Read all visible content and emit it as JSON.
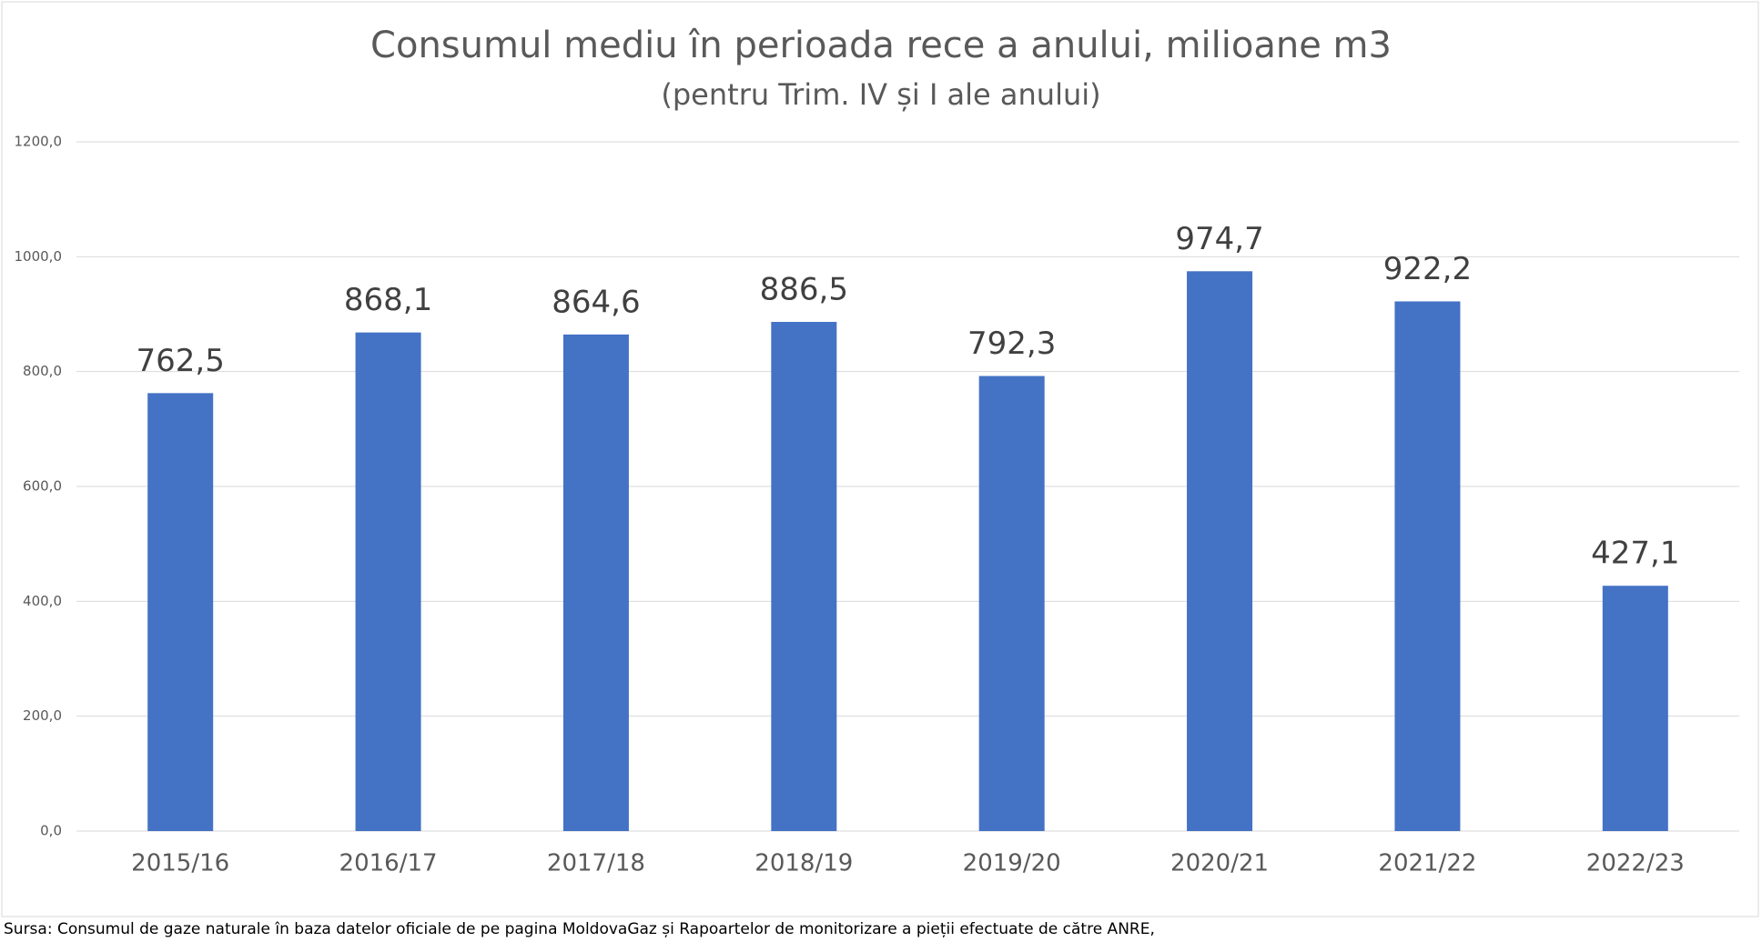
{
  "chart_data": {
    "type": "bar",
    "title": "Consumul mediu în perioada rece a anului, milioane m3",
    "subtitle": "(pentru Trim. IV și I ale anului)",
    "categories": [
      "2015/16",
      "2016/17",
      "2017/18",
      "2018/19",
      "2019/20",
      "2020/21",
      "2021/22",
      "2022/23"
    ],
    "values": [
      762.5,
      868.1,
      864.6,
      886.5,
      792.3,
      974.7,
      922.2,
      427.1
    ],
    "value_labels": [
      "762,5",
      "868,1",
      "864,6",
      "886,5",
      "792,3",
      "974,7",
      "922,2",
      "427,1"
    ],
    "color": "#4472c4",
    "ylim": [
      0,
      1200
    ],
    "yticks": [
      {
        "value": 0,
        "label": "0,0"
      },
      {
        "value": 200,
        "label": "200,0"
      },
      {
        "value": 400,
        "label": "400,0"
      },
      {
        "value": 600,
        "label": "600,0"
      },
      {
        "value": 800,
        "label": "800,0"
      },
      {
        "value": 1000,
        "label": "1000,0"
      },
      {
        "value": 1200,
        "label": "1200,0"
      }
    ],
    "grid": true,
    "source": "Sursa: Consumul de gaze naturale în baza datelor oficiale de pe pagina MoldovaGaz și Rapoartelor de monitorizare a pieții efectuate de către ANRE,"
  }
}
